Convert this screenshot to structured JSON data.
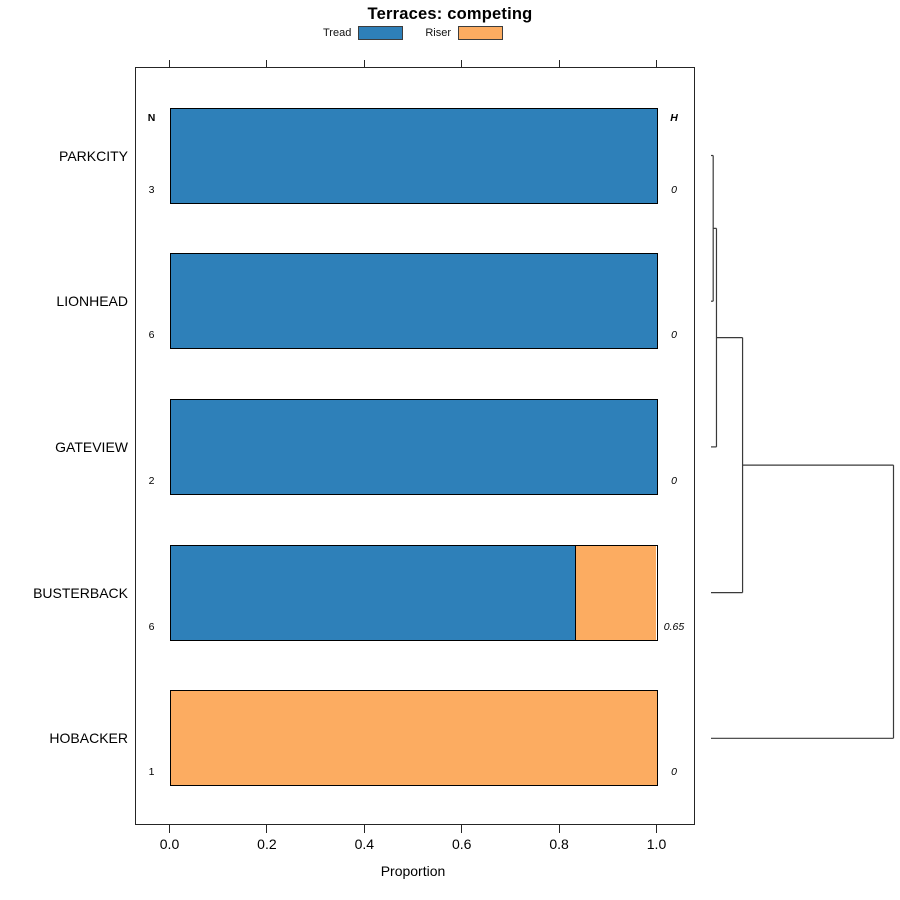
{
  "title": "Terraces: competing",
  "legend": {
    "items": [
      {
        "label": "Tread",
        "color": "#2e80b9"
      },
      {
        "label": "Riser",
        "color": "#fcac61"
      }
    ]
  },
  "columns": {
    "n_header": "N",
    "h_header": "H"
  },
  "x_axis": {
    "label": "Proportion",
    "tick_labels": [
      "0.0",
      "0.2",
      "0.4",
      "0.6",
      "0.8",
      "1.0"
    ],
    "tick_values": [
      0,
      0.2,
      0.4,
      0.6,
      0.8,
      1.0
    ]
  },
  "chart_data": {
    "type": "bar",
    "subtype": "horizontal-stacked-proportion",
    "title": "Terraces: competing",
    "xlabel": "Proportion",
    "xlim": [
      0,
      1
    ],
    "grid": false,
    "legend_position": "top",
    "categories": [
      "PARKCITY",
      "LIONHEAD",
      "GATEVIEW",
      "BUSTERBACK",
      "HOBACKER"
    ],
    "series": [
      {
        "name": "Tread",
        "color": "#2e80b9",
        "values": [
          1.0,
          1.0,
          1.0,
          0.833,
          0.0
        ]
      },
      {
        "name": "Riser",
        "color": "#fcac61",
        "values": [
          0.0,
          0.0,
          0.0,
          0.167,
          1.0
        ]
      }
    ],
    "n_values": [
      "3",
      "6",
      "2",
      "6",
      "1"
    ],
    "h_values": [
      "0",
      "0",
      "0",
      "0.65",
      "0"
    ],
    "dendrogram": {
      "position": "right",
      "leaf_order": [
        "PARKCITY",
        "LIONHEAD",
        "GATEVIEW",
        "BUSTERBACK",
        "HOBACKER"
      ],
      "merges": [
        {
          "a": "PARKCITY",
          "b": "LIONHEAD",
          "height": 0.012,
          "id": "merge0"
        },
        {
          "a": "merge0",
          "b": "GATEVIEW",
          "height": 0.03,
          "id": "merge1"
        },
        {
          "a": "merge1",
          "b": "BUSTERBACK",
          "height": 0.173,
          "id": "merge2"
        },
        {
          "a": "merge2",
          "b": "HOBACKER",
          "height": 1.0,
          "id": "merge3"
        }
      ],
      "line_color": "#3a3a3a"
    }
  }
}
